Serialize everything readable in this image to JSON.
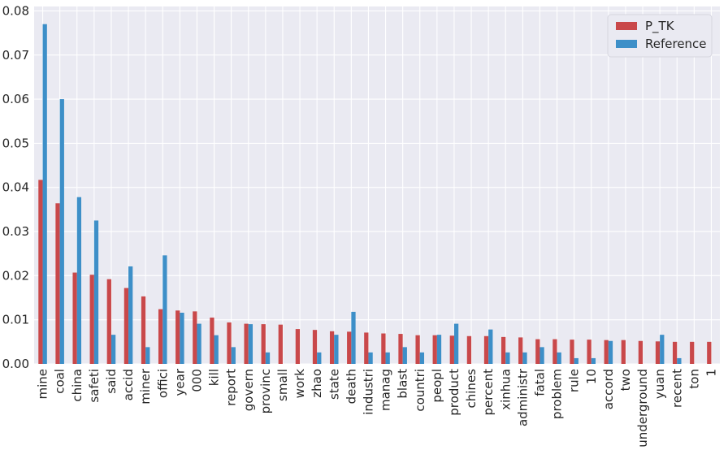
{
  "chart_data": {
    "type": "bar",
    "title": "",
    "xlabel": "",
    "ylabel": "",
    "ylim": [
      0,
      0.081
    ],
    "yticks": [
      "0.00",
      "0.01",
      "0.02",
      "0.03",
      "0.04",
      "0.05",
      "0.06",
      "0.07",
      "0.08"
    ],
    "grid": true,
    "legend_position": "top-right",
    "categories": [
      "mine",
      "coal",
      "china",
      "safeti",
      "said",
      "accid",
      "miner",
      "offici",
      "year",
      "000",
      "kill",
      "report",
      "govern",
      "provinc",
      "small",
      "work",
      "zhao",
      "state",
      "death",
      "industri",
      "manag",
      "blast",
      "countri",
      "peopl",
      "product",
      "chines",
      "percent",
      "xinhua",
      "administr",
      "fatal",
      "problem",
      "rule",
      "10",
      "accord",
      "two",
      "underground",
      "yuan",
      "recent",
      "ton",
      "1"
    ],
    "series": [
      {
        "name": "P_TK",
        "color": "#c9484a",
        "values": [
          0.0417,
          0.0364,
          0.0207,
          0.0202,
          0.0192,
          0.0172,
          0.0153,
          0.0124,
          0.0121,
          0.0119,
          0.0105,
          0.0094,
          0.0091,
          0.009,
          0.0089,
          0.0079,
          0.0077,
          0.0074,
          0.0073,
          0.0071,
          0.0069,
          0.0068,
          0.0065,
          0.0065,
          0.0064,
          0.0063,
          0.0063,
          0.0061,
          0.006,
          0.0056,
          0.0056,
          0.0055,
          0.0055,
          0.0054,
          0.0054,
          0.0052,
          0.0051,
          0.005,
          0.005,
          0.005
        ]
      },
      {
        "name": "Reference",
        "color": "#3d8fc8",
        "values": [
          0.077,
          0.06,
          0.0378,
          0.0325,
          0.0066,
          0.0221,
          0.0038,
          0.0246,
          0.0116,
          0.0091,
          0.0065,
          0.0038,
          0.009,
          0.0026,
          0.0,
          0.0,
          0.0026,
          0.0066,
          0.0118,
          0.0026,
          0.0026,
          0.0038,
          0.0026,
          0.0066,
          0.0091,
          0.0,
          0.0078,
          0.0026,
          0.0026,
          0.0038,
          0.0026,
          0.0013,
          0.0013,
          0.0052,
          0.0,
          0.0,
          0.0066,
          0.0013,
          0.0,
          0.0
        ]
      }
    ]
  }
}
